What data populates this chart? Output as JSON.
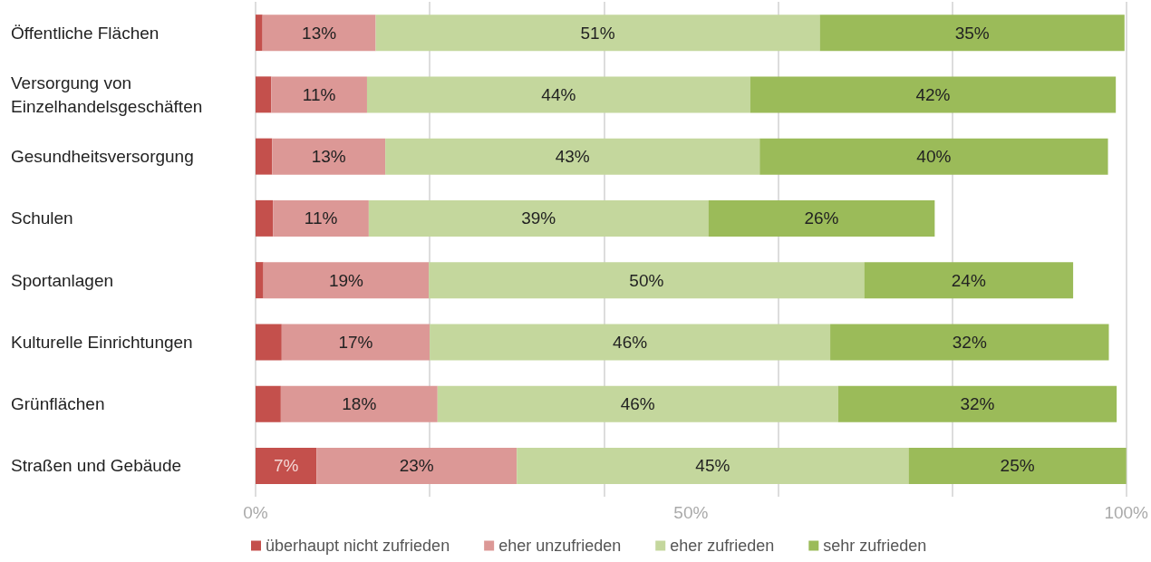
{
  "chart_data": {
    "type": "bar",
    "orientation": "horizontal",
    "stacked": true,
    "categories": [
      "Öffentliche Flächen",
      "Versorgung von Einzelhandelsgeschäften",
      "Gesundheitsversorgung",
      "Schulen",
      "Sportanlagen",
      "Kulturelle Einrichtungen",
      "Grünflächen",
      "Straßen und Gebäude"
    ],
    "series": [
      {
        "name": "überhaupt nicht zufrieden",
        "color": "#c4504c",
        "values": [
          0.8,
          1.8,
          1.9,
          2,
          0.9,
          3,
          2.9,
          7
        ],
        "value_labels": [
          null,
          null,
          null,
          null,
          null,
          null,
          null,
          "7%"
        ]
      },
      {
        "name": "eher unzufrieden",
        "color": "#dc9896",
        "values": [
          13,
          11,
          13,
          11,
          19,
          17,
          18,
          23
        ],
        "value_labels": [
          "13%",
          "11%",
          "13%",
          "11%",
          "19%",
          "17%",
          "18%",
          "23%"
        ]
      },
      {
        "name": "eher zufrieden",
        "color": "#c4d79d",
        "values": [
          51,
          44,
          43,
          39,
          50,
          46,
          46,
          45
        ],
        "value_labels": [
          "51%",
          "44%",
          "43%",
          "39%",
          "50%",
          "46%",
          "46%",
          "45%"
        ]
      },
      {
        "name": "sehr zufrieden",
        "color": "#9bbb59",
        "values": [
          35,
          42,
          40,
          26,
          24,
          32,
          32,
          25
        ],
        "value_labels": [
          "35%",
          "42%",
          "40%",
          "26%",
          "24%",
          "32%",
          "32%",
          "25%"
        ]
      }
    ],
    "xlim": [
      0,
      100
    ],
    "xticks": [
      {
        "value": 0,
        "label": "0%"
      },
      {
        "value": 50,
        "label": "50%"
      },
      {
        "value": 100,
        "label": "100%"
      }
    ],
    "grid": "x",
    "legend": "bottom",
    "marker": "square"
  }
}
